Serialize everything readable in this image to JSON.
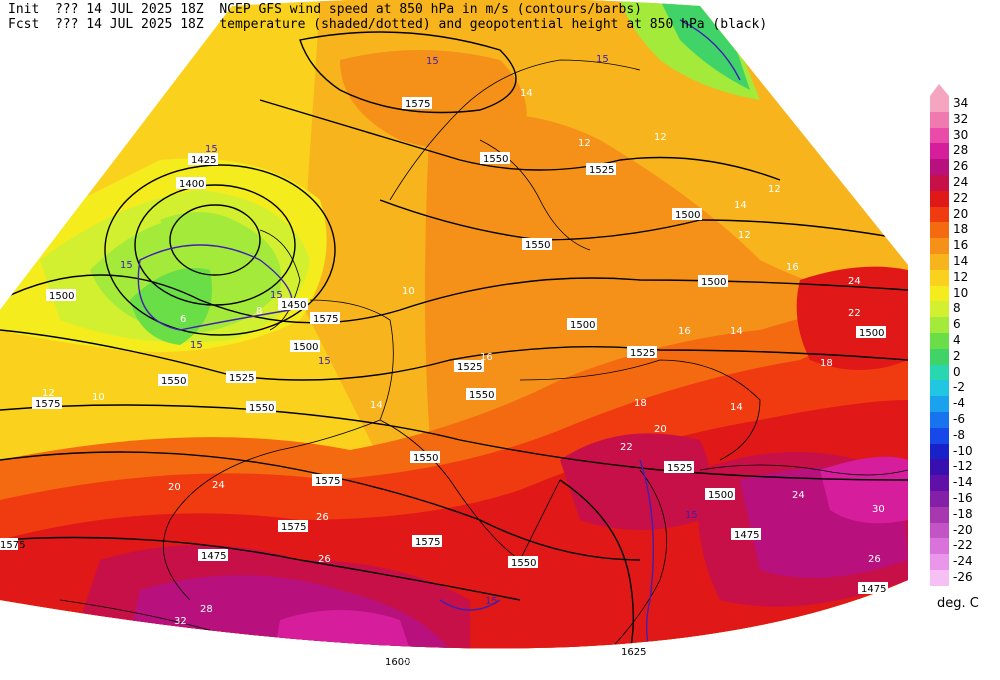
{
  "header": {
    "init_label": "Init",
    "init_time": "??? 14 JUL 2025 18Z",
    "fcst_label": "Fcst",
    "fcst_time": "??? 14 JUL 2025 18Z",
    "title_line1": "NCEP GFS wind speed at 850 hPa in m/s (contours/barbs)",
    "title_line2": "temperature (shaded/dotted) and geopotential height at 850 hPa (black)"
  },
  "colorbar": {
    "unit": "deg. C",
    "levels": [
      {
        "label": "34",
        "color": "#f5a5c0"
      },
      {
        "label": "32",
        "color": "#f07ab0"
      },
      {
        "label": "30",
        "color": "#ea4aa8"
      },
      {
        "label": "28",
        "color": "#d61e9c"
      },
      {
        "label": "26",
        "color": "#b8107c"
      },
      {
        "label": "24",
        "color": "#c81048"
      },
      {
        "label": "22",
        "color": "#e01818"
      },
      {
        "label": "20",
        "color": "#f03a10"
      },
      {
        "label": "18",
        "color": "#f46a10"
      },
      {
        "label": "16",
        "color": "#f59018"
      },
      {
        "label": "14",
        "color": "#f8b41c"
      },
      {
        "label": "12",
        "color": "#fad21e"
      },
      {
        "label": "10",
        "color": "#f4ec1c"
      },
      {
        "label": "8",
        "color": "#d2f030"
      },
      {
        "label": "6",
        "color": "#a4ea3a"
      },
      {
        "label": "4",
        "color": "#6ade46"
      },
      {
        "label": "2",
        "color": "#40d468"
      },
      {
        "label": "0",
        "color": "#28d6b0"
      },
      {
        "label": "-2",
        "color": "#20c6e2"
      },
      {
        "label": "-4",
        "color": "#1aa2ee"
      },
      {
        "label": "-6",
        "color": "#1874ee"
      },
      {
        "label": "-8",
        "color": "#1648ea"
      },
      {
        "label": "-10",
        "color": "#1822c8"
      },
      {
        "label": "-12",
        "color": "#3810b0"
      },
      {
        "label": "-14",
        "color": "#6010a8"
      },
      {
        "label": "-16",
        "color": "#8420a8"
      },
      {
        "label": "-18",
        "color": "#a838b0"
      },
      {
        "label": "-20",
        "color": "#c254c6"
      },
      {
        "label": "-22",
        "color": "#da72dc"
      },
      {
        "label": "-24",
        "color": "#ea96ea"
      },
      {
        "label": "-26",
        "color": "#f6c0f4"
      }
    ]
  },
  "map": {
    "height_labels": [
      "1575",
      "1550",
      "1425",
      "1400",
      "1500",
      "1525",
      "1550",
      "1500",
      "1500",
      "1500",
      "1525",
      "1550",
      "1575",
      "1500",
      "1575",
      "1550",
      "1525",
      "1550",
      "1575",
      "1475",
      "1575",
      "1575",
      "1600",
      "1625",
      "1550",
      "1525",
      "1500",
      "1475",
      "1475",
      "1500",
      "1525",
      "1550",
      "1575",
      "1450"
    ],
    "wind_labels": [
      "15",
      "15",
      "15",
      "15",
      "15",
      "15",
      "15",
      "15",
      "15"
    ],
    "temp_labels": [
      "14",
      "12",
      "10",
      "12",
      "14",
      "16",
      "14",
      "12",
      "10",
      "8",
      "6",
      "12",
      "14",
      "16",
      "18",
      "20",
      "22",
      "24",
      "26",
      "28",
      "30",
      "32",
      "20",
      "18",
      "16",
      "14",
      "12",
      "24",
      "26",
      "28",
      "22",
      "24",
      "26"
    ]
  }
}
